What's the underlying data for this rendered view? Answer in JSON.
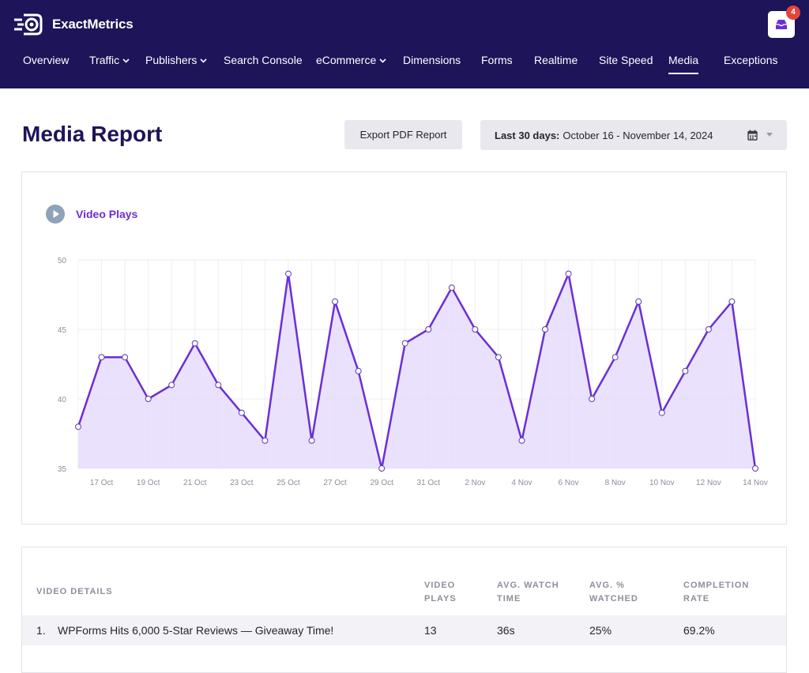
{
  "app": {
    "name": "ExactMetrics",
    "notification_count": "4"
  },
  "nav": {
    "items": [
      {
        "label": "Overview",
        "dropdown": false
      },
      {
        "label": "Traffic",
        "dropdown": true
      },
      {
        "label": "Publishers",
        "dropdown": true
      },
      {
        "label": "Search Console",
        "dropdown": false
      },
      {
        "label": "eCommerce",
        "dropdown": true
      },
      {
        "label": "Dimensions",
        "dropdown": false
      },
      {
        "label": "Forms",
        "dropdown": false
      },
      {
        "label": "Realtime",
        "dropdown": false
      },
      {
        "label": "Site Speed",
        "dropdown": false
      },
      {
        "label": "Media",
        "dropdown": false,
        "active": true
      },
      {
        "label": "Exceptions",
        "dropdown": false
      }
    ]
  },
  "page": {
    "title": "Media Report",
    "export_label": "Export PDF Report",
    "date_range_prefix": "Last 30 days:",
    "date_range_value": "October 16 - November 14, 2024"
  },
  "colors": {
    "header_bg": "#1d1459",
    "accent": "#6b2fd6",
    "area_fill": "#e6dcfb",
    "badge": "#e2463a"
  },
  "chart_data": {
    "type": "area",
    "title": "Video Plays",
    "x": [
      "16 Oct",
      "17 Oct",
      "18 Oct",
      "19 Oct",
      "20 Oct",
      "21 Oct",
      "22 Oct",
      "23 Oct",
      "24 Oct",
      "25 Oct",
      "26 Oct",
      "27 Oct",
      "28 Oct",
      "29 Oct",
      "30 Oct",
      "31 Oct",
      "1 Nov",
      "2 Nov",
      "3 Nov",
      "4 Nov",
      "5 Nov",
      "6 Nov",
      "7 Nov",
      "8 Nov",
      "9 Nov",
      "10 Nov",
      "11 Nov",
      "12 Nov",
      "13 Nov",
      "14 Nov"
    ],
    "values": [
      38,
      43,
      43,
      40,
      41,
      44,
      41,
      39,
      37,
      49,
      37,
      47,
      42,
      35,
      44,
      45,
      48,
      45,
      43,
      37,
      45,
      49,
      40,
      43,
      47,
      39,
      42,
      45,
      47,
      35
    ],
    "x_tick_labels": [
      "17 Oct",
      "19 Oct",
      "21 Oct",
      "23 Oct",
      "25 Oct",
      "27 Oct",
      "29 Oct",
      "31 Oct",
      "2 Nov",
      "4 Nov",
      "6 Nov",
      "8 Nov",
      "10 Nov",
      "12 Nov",
      "14 Nov"
    ],
    "y_ticks": [
      35,
      40,
      45,
      50
    ],
    "ylim": [
      35,
      50
    ],
    "grid": true,
    "xlabel": "",
    "ylabel": ""
  },
  "table": {
    "headers": [
      {
        "line1": "VIDEO DETAILS",
        "line2": ""
      },
      {
        "line1": "VIDEO",
        "line2": "PLAYS"
      },
      {
        "line1": "AVG. WATCH",
        "line2": "TIME"
      },
      {
        "line1": "AVG. %",
        "line2": "WATCHED"
      },
      {
        "line1": "COMPLETION",
        "line2": "RATE"
      }
    ],
    "rows": [
      {
        "index": "1.",
        "title": "WPForms Hits 6,000 5-Star Reviews — Giveaway Time!",
        "plays": "13",
        "avg_watch_time": "36s",
        "avg_watched": "25%",
        "completion_rate": "69.2%"
      }
    ]
  }
}
